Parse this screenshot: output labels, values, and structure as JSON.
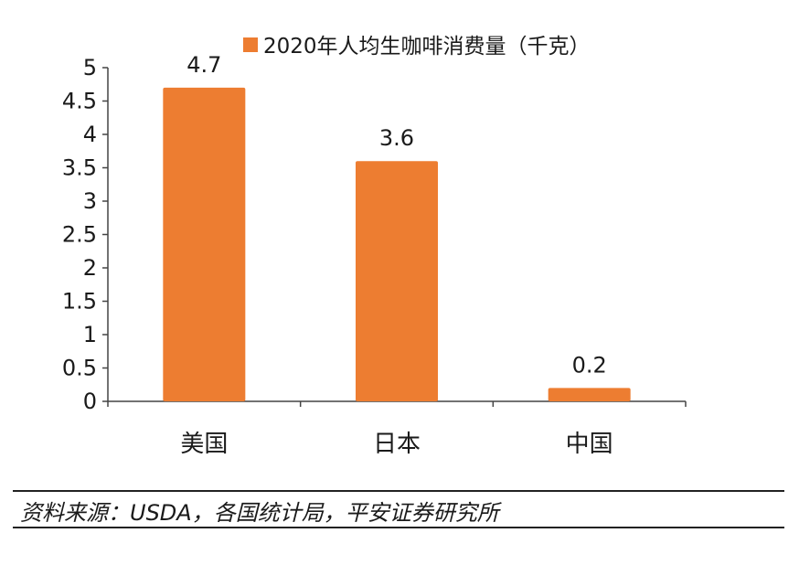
{
  "colors": {
    "bar": "#ED7D31",
    "axis": "#444444",
    "text": "#1a1a1a"
  },
  "chart_data": {
    "type": "bar",
    "categories": [
      "美国",
      "日本",
      "中国"
    ],
    "series": [
      {
        "name": "2020年人均生咖啡消费量（千克）",
        "values": [
          4.7,
          3.6,
          0.2
        ],
        "data_labels": [
          "4.7",
          "3.6",
          "0.2"
        ]
      }
    ],
    "ylim": [
      0,
      5
    ],
    "yticks": [
      0,
      0.5,
      1,
      1.5,
      2,
      2.5,
      3,
      3.5,
      4,
      4.5,
      5
    ],
    "ytick_labels": [
      "0",
      "0.5",
      "1",
      "1.5",
      "2",
      "2.5",
      "3",
      "3.5",
      "4",
      "4.5",
      "5"
    ],
    "legend_position": "top",
    "grid": false
  },
  "source": {
    "text": "资料来源：USDA，各国统计局，平安证券研究所"
  }
}
